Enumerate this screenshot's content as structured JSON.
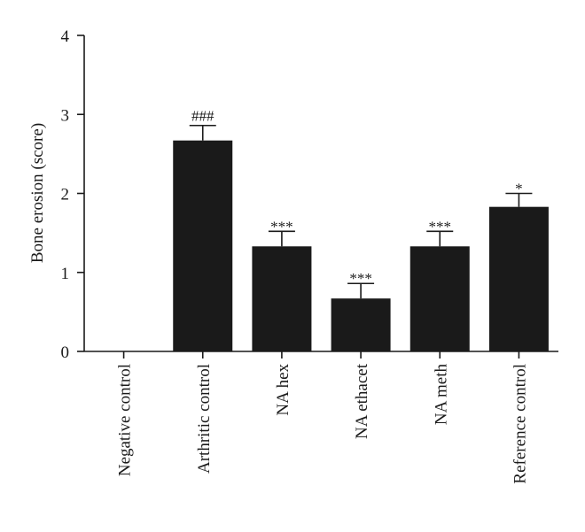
{
  "chart_data": {
    "type": "bar",
    "title": "",
    "xlabel": "",
    "ylabel": "Bone erosion (score)",
    "ylim": [
      0,
      4
    ],
    "yticks": [
      "0",
      "1",
      "2",
      "3",
      "4"
    ],
    "categories": [
      "Negative control",
      "Arthritic control",
      "NA hex",
      "NA ethacet",
      "NA meth",
      "Reference control"
    ],
    "values": [
      0,
      2.67,
      1.33,
      0.67,
      1.33,
      1.83
    ],
    "errors": [
      0,
      0.19,
      0.19,
      0.19,
      0.19,
      0.17
    ],
    "annotations": [
      "",
      "###",
      "***",
      "***",
      "***",
      "*"
    ],
    "bar_color": "#1a1a1a",
    "grid": false,
    "legend": "none"
  }
}
